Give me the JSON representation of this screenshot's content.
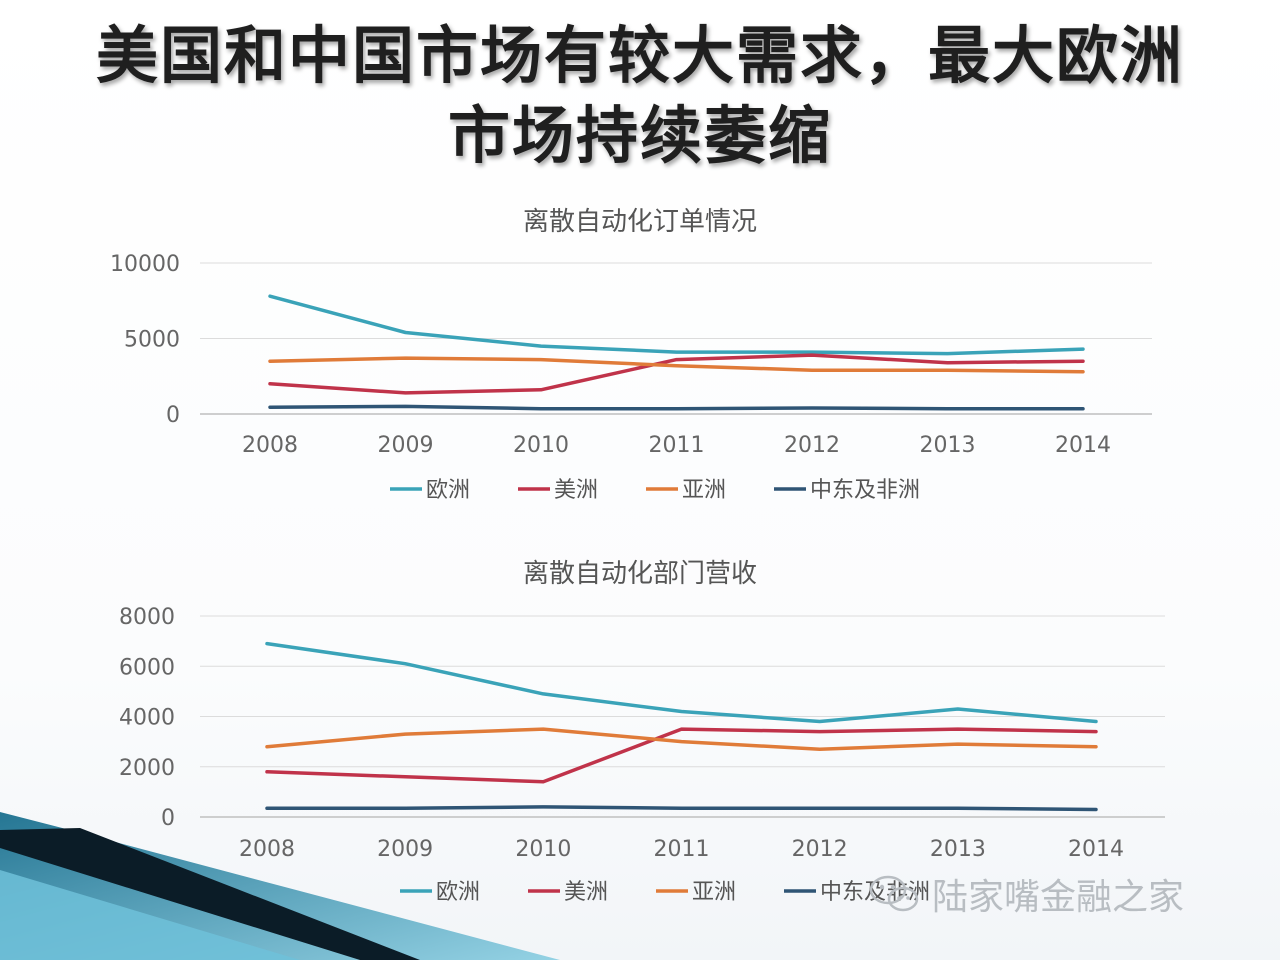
{
  "slide": {
    "title_line1": "美国和中国市场有较大需求，最大欧洲",
    "title_line2": "市场持续萎缩"
  },
  "watermark": {
    "text": "陆家嘴金融之家",
    "icon": "wechat-icon"
  },
  "colors": {
    "europe": "#3aa3b8",
    "america": "#c0334a",
    "asia": "#e07b39",
    "mea": "#2f5575"
  },
  "chart_data": [
    {
      "type": "line",
      "title": "离散自动化订单情况",
      "categories": [
        "2008",
        "2009",
        "2010",
        "2011",
        "2012",
        "2013",
        "2014"
      ],
      "ylim": [
        0,
        10000
      ],
      "yticks": [
        "0",
        "5000",
        "10000"
      ],
      "grid": true,
      "legend": "bottom",
      "series": [
        {
          "name": "欧洲",
          "values": [
            7800,
            5400,
            4500,
            4100,
            4100,
            4000,
            4300
          ]
        },
        {
          "name": "美洲",
          "values": [
            2000,
            1400,
            1600,
            3600,
            3900,
            3400,
            3500
          ]
        },
        {
          "name": "亚洲",
          "values": [
            3500,
            3700,
            3600,
            3200,
            2900,
            2900,
            2800
          ]
        },
        {
          "name": "中东及非洲",
          "values": [
            450,
            500,
            350,
            350,
            400,
            350,
            350
          ]
        }
      ]
    },
    {
      "type": "line",
      "title": "离散自动化部门营收",
      "categories": [
        "2008",
        "2009",
        "2010",
        "2011",
        "2012",
        "2013",
        "2014"
      ],
      "ylim": [
        0,
        8000
      ],
      "yticks": [
        "0",
        "2000",
        "4000",
        "6000",
        "8000"
      ],
      "grid": true,
      "legend": "bottom",
      "series": [
        {
          "name": "欧洲",
          "values": [
            6900,
            6100,
            4900,
            4200,
            3800,
            4300,
            3800
          ]
        },
        {
          "name": "美洲",
          "values": [
            1800,
            1600,
            1400,
            3500,
            3400,
            3500,
            3400
          ]
        },
        {
          "name": "亚洲",
          "values": [
            2800,
            3300,
            3500,
            3000,
            2700,
            2900,
            2800
          ]
        },
        {
          "name": "中东及非洲",
          "values": [
            350,
            350,
            400,
            350,
            350,
            350,
            300
          ]
        }
      ]
    }
  ]
}
